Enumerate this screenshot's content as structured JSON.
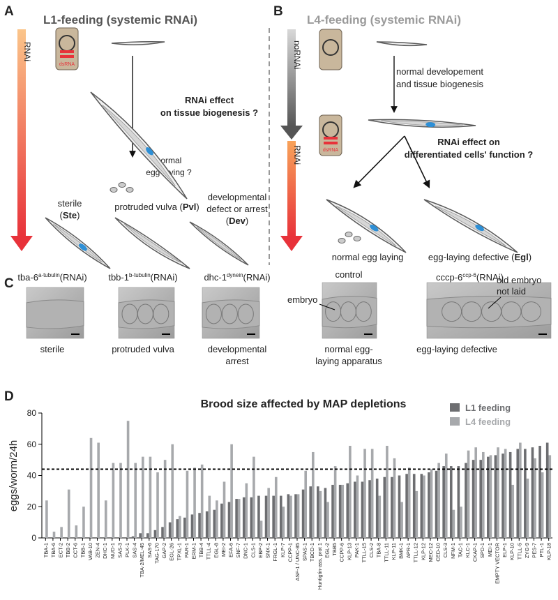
{
  "panel_a": {
    "label": "A",
    "title": "L1-feeding (systemic RNAi)",
    "gradient_label": "RNAi",
    "dsrna": "dsRNA",
    "question": [
      "RNAi effect",
      "on tissue biogenesis ?"
    ],
    "egg_question": [
      "normal",
      "egg-laying ?"
    ],
    "sterile": [
      "sterile",
      "(",
      "Ste",
      ")"
    ],
    "pvl": [
      "protruded vulva (",
      "Pvl",
      ")"
    ],
    "dev": [
      "developmental",
      "defect or arrest",
      "(",
      "Dev",
      ")"
    ]
  },
  "panel_b": {
    "label": "B",
    "title": "L4-feeding (systemic RNAi)",
    "gradient_label_top": "noRNAi",
    "gradient_label_bottom": "RNAi",
    "dsrna": "dsRNA",
    "development": [
      "normal developement",
      "and tissue biogenesis"
    ],
    "question": [
      "RNAi effect on",
      "differentiated cells' function ?"
    ],
    "normal": "normal egg laying",
    "egl": [
      "egg-laying defective (",
      "Egl",
      ")"
    ]
  },
  "panel_c": {
    "label": "C",
    "images": [
      {
        "gene": "tba-6",
        "sup": "a-tubulin",
        "suffix": "(RNAi)",
        "caption": [
          "sterile"
        ]
      },
      {
        "gene": "tbb-1",
        "sup": "b-tubulin",
        "suffix": "(RNAi)",
        "caption": [
          "protruded vulva"
        ]
      },
      {
        "gene": "dhc-1",
        "sup": "dynein",
        "suffix": "(RNAi)",
        "caption": [
          "developmental",
          "arrest"
        ]
      },
      {
        "gene": "control",
        "caption": [
          "normal egg-",
          "laying apparatus"
        ],
        "annotation": [
          "embryo"
        ]
      },
      {
        "gene": "cccp-6",
        "sup": "ccp-6",
        "suffix": "(RNAi)",
        "caption": [
          "egg-laying defective"
        ],
        "annotation": [
          "old embryo",
          "not laid"
        ]
      }
    ]
  },
  "panel_d_label": "D",
  "chart_data": {
    "type": "bar",
    "title": "Brood size affected by MAP depletions",
    "y_label": "eggs/worm/24h",
    "categories": [
      "TBA-1",
      "TBA-6",
      "ECT-2",
      "TBB-2",
      "CCT-6",
      "TBB-1",
      "VAB-10",
      "ZEN-4",
      "DHC-1",
      "NUD-1",
      "SAS-3",
      "PLK-1",
      "SAS-4",
      "TBA-2/MEL-45",
      "SAS-6",
      "TAG-170",
      "GAP-2",
      "EGL-26",
      "TPXL-1",
      "PAR-1",
      "ERM-1",
      "TBB-4",
      "TTLL-4",
      "EGL-8",
      "MEI-2",
      "EFA-6",
      "SNF-7",
      "DNC-1",
      "CLS-1",
      "EBP-2",
      "SNX-1",
      "FRGL-1",
      "KLP-7",
      "CCPP-1",
      "ASF-1 / UNC-85",
      "SPAS-1",
      "TBCD-1",
      "Huntigtin-ass. prot 1",
      "EGL-2",
      "TBB5",
      "CCPP-6",
      "KLP-13",
      "PAK-1",
      "TTLL-15",
      "CLS-2",
      "TBA-8",
      "TTLL-11",
      "KLP-11",
      "BMK-1",
      "APR-1",
      "TTLL-12",
      "KLP-12",
      "MEC-12",
      "CED-10",
      "CLS-3",
      "NFM-1",
      "TAC-1",
      "KLC-1",
      "CKAP-1",
      "SPD-1",
      "MEI-1",
      "EMPTY VECTOR",
      "ELP-1",
      "KLP-10",
      "TTLL-5",
      "ZYG-9",
      "PES-7",
      "PTL-1",
      "KLP-18"
    ],
    "series": [
      {
        "name": "L1 feeding",
        "color": "#6d6e71",
        "values": [
          0,
          0,
          0,
          0,
          0,
          0,
          0,
          0,
          0,
          0,
          0,
          0,
          1,
          3,
          3,
          5,
          7,
          10,
          12,
          13,
          15,
          16,
          17,
          18,
          22,
          23,
          25,
          26,
          26,
          27,
          27,
          27,
          27,
          28,
          28,
          31,
          33,
          33,
          32,
          34,
          34,
          35,
          36,
          36,
          37,
          38,
          39,
          39,
          40,
          41,
          41,
          41,
          42,
          43,
          46,
          46,
          46,
          48,
          50,
          50,
          52,
          53,
          54,
          55,
          57,
          57,
          58,
          59,
          61
        ]
      },
      {
        "name": "L4 feeding",
        "color": "#a7a9ac",
        "values": [
          24,
          4,
          7,
          31,
          8,
          20,
          64,
          61,
          24,
          48,
          48,
          75,
          48,
          52,
          52,
          42,
          50,
          60,
          14,
          43,
          45,
          47,
          27,
          24,
          36,
          60,
          25,
          35,
          52,
          11,
          32,
          39,
          20,
          27,
          28,
          43,
          55,
          30,
          23,
          46,
          34,
          59,
          40,
          57,
          57,
          27,
          59,
          51,
          23,
          45,
          30,
          40,
          44,
          48,
          54,
          18,
          20,
          56,
          58,
          55,
          53,
          58,
          57,
          34,
          61,
          38,
          51,
          42,
          53
        ]
      }
    ],
    "ylim": [
      0,
      80
    ],
    "yticks": [
      0,
      20,
      40,
      60,
      80
    ],
    "reference_line": 44,
    "legend": "top-right"
  }
}
